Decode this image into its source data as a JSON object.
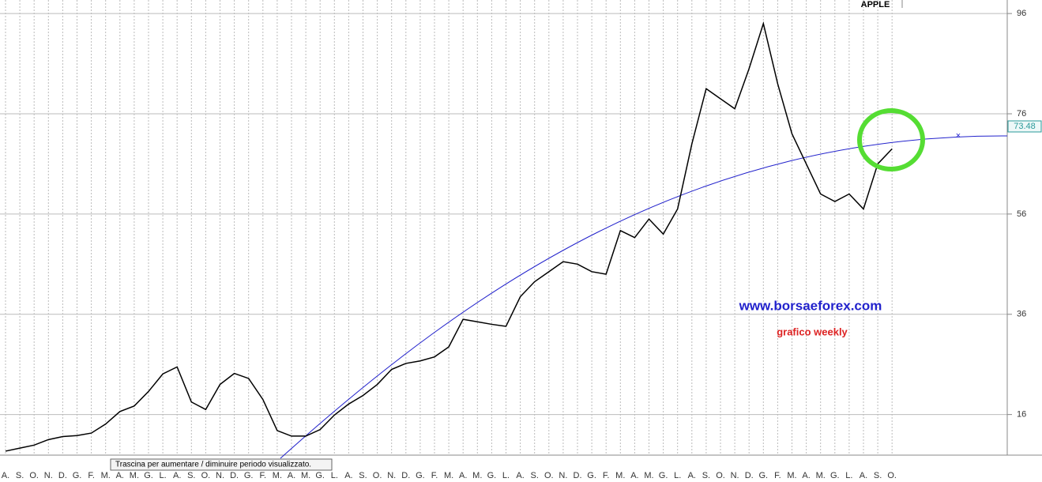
{
  "chart_data": {
    "type": "line",
    "title": "APPLE",
    "website": "www.borsaeforex.com",
    "subtitle": "grafico weekly",
    "tooltip": "Trascina per aumentare / diminuire periodo visualizzato.",
    "categories": [
      "A.",
      "S.",
      "O.",
      "N.",
      "D.",
      "G.",
      "F.",
      "M.",
      "A.",
      "M.",
      "G.",
      "L.",
      "A.",
      "S.",
      "O.",
      "N.",
      "D.",
      "G.",
      "F.",
      "M.",
      "A.",
      "M.",
      "G.",
      "L.",
      "A.",
      "S.",
      "O.",
      "N.",
      "D.",
      "G.",
      "F.",
      "M.",
      "A.",
      "M.",
      "G.",
      "L.",
      "A.",
      "S.",
      "O.",
      "N.",
      "D.",
      "G.",
      "F.",
      "M.",
      "A.",
      "M.",
      "G.",
      "L.",
      "A.",
      "S.",
      "O.",
      "N.",
      "D.",
      "G.",
      "F.",
      "M.",
      "A.",
      "M.",
      "G.",
      "L.",
      "A.",
      "S.",
      "O."
    ],
    "series": [
      {
        "name": "APPLE",
        "color": "#000000",
        "values": [
          8.7,
          9.3,
          9.9,
          11,
          11.6,
          11.8,
          12.3,
          14.1,
          16.6,
          17.7,
          20.6,
          24.1,
          25.5,
          18.5,
          17,
          22,
          24.2,
          23.2,
          19,
          12.8,
          11.7,
          11.7,
          13,
          15.9,
          18.1,
          19.8,
          22,
          25,
          26.2,
          26.7,
          27.5,
          29.5,
          35,
          34.5,
          34,
          33.6,
          39.5,
          42.5,
          44.5,
          46.5,
          46,
          44.5,
          44,
          52.7,
          51.3,
          55,
          52,
          57,
          70,
          81,
          79,
          77,
          85,
          94,
          82,
          72,
          66,
          60,
          58.5,
          60,
          57,
          66,
          69
        ]
      }
    ],
    "last_value": 73.48,
    "ylim": [
      7.9,
      98.7
    ],
    "yticks": [
      16,
      36,
      56,
      76,
      96
    ],
    "grid": true
  }
}
